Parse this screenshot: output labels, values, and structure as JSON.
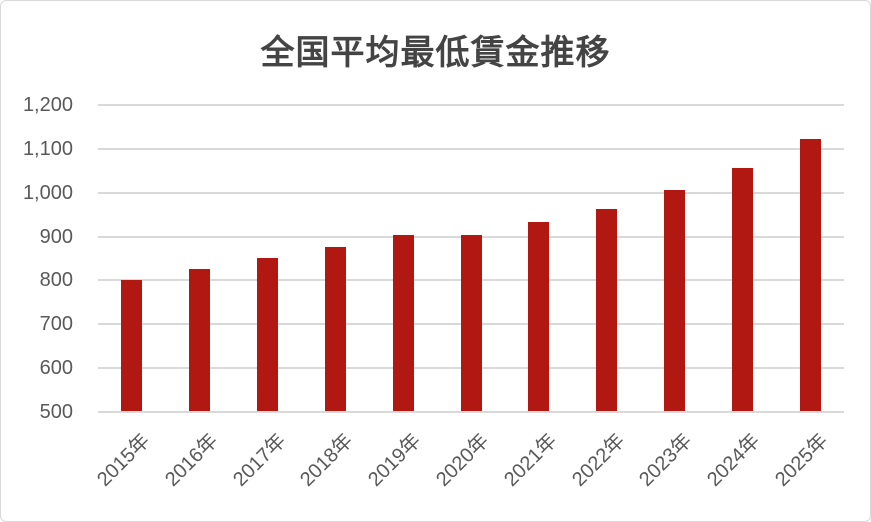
{
  "chart_data": {
    "type": "bar",
    "title": "全国平均最低賃金推移",
    "categories": [
      "2015年",
      "2016年",
      "2017年",
      "2018年",
      "2019年",
      "2020年",
      "2021年",
      "2022年",
      "2023年",
      "2024年",
      "2025年"
    ],
    "values": [
      798,
      823,
      848,
      874,
      901,
      902,
      930,
      961,
      1004,
      1055,
      1121
    ],
    "xlabel": "",
    "ylabel": "",
    "ylim": [
      500,
      1200
    ],
    "ytick_interval": 100,
    "ytick_values": [
      500,
      600,
      700,
      800,
      900,
      1000,
      1100,
      1200
    ],
    "ytick_labels": [
      "500",
      "600",
      "700",
      "800",
      "900",
      "1,000",
      "1,100",
      "1,200"
    ],
    "grid": true,
    "legend": false,
    "bar_color": "#b21812",
    "gridline_color": "#d9d9d9",
    "axis_label_color": "#595959",
    "title_color": "#444444",
    "background_color": "#ffffff"
  }
}
